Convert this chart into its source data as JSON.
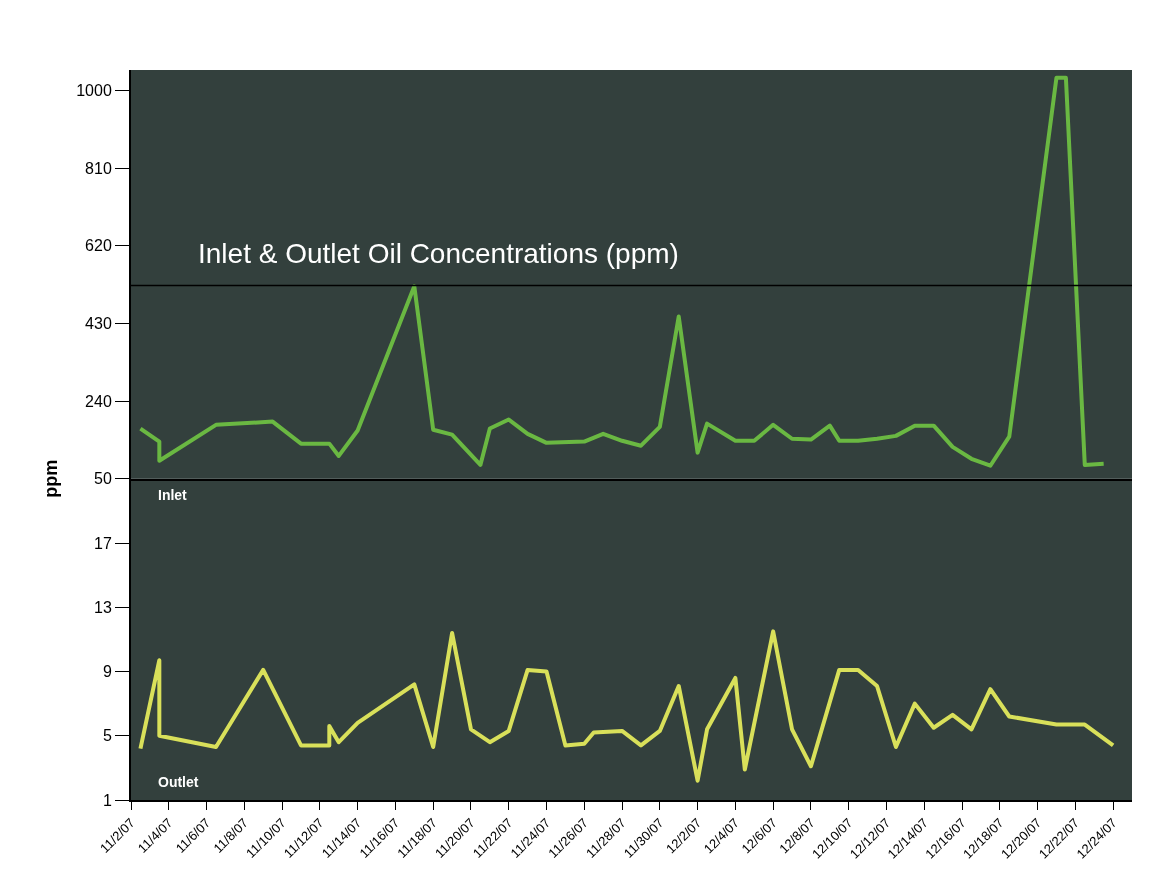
{
  "chart_data": [
    {
      "type": "line",
      "title": "Inlet & Outlet Oil Concentrations (ppm)",
      "ylabel": "ppm",
      "tick_labels": "y",
      "grid": false,
      "marker": "none",
      "line_style": "solid",
      "xlim": [
        "--11-02",
        "--12-25"
      ],
      "ylim": [
        50,
        1050
      ],
      "yticks": [
        50,
        240,
        430,
        620,
        810,
        1000
      ],
      "ref_lines": [
        {
          "axis": "y",
          "value": 523,
          "color": "#000000"
        }
      ],
      "series": [
        {
          "name": "Inlet",
          "color": "#6ab842",
          "x": [
            "--11-02T12:00",
            "--11-03T12:00",
            "--11-03T12:00",
            "--11-06T12:00",
            "--11-09T12:00",
            "--11-11",
            "--11-12T12:00",
            "--11-13",
            "--11-14",
            "--11-17",
            "--11-18",
            "--11-19",
            "--11-20T12:00",
            "--11-21",
            "--11-22",
            "--11-23",
            "--11-24",
            "--11-26",
            "--11-27",
            "--11-28",
            "--11-29",
            "--11-30",
            "--12-01",
            "--12-02",
            "--12-02T12:00",
            "--12-04",
            "--12-05",
            "--12-06",
            "--12-07",
            "--12-08",
            "--12-09",
            "--12-09T12:00",
            "--12-10T12:00",
            "--12-11T12:00",
            "--12-12T12:00",
            "--12-13T12:00",
            "--12-14T12:00",
            "--12-15T12:00",
            "--12-16T12:00",
            "--12-17T12:00",
            "--12-18T12:00",
            "--12-21",
            "--12-21T12:00",
            "--12-22T12:00",
            "--12-23T12:00"
          ],
          "values": [
            173,
            141,
            94,
            182,
            190,
            136,
            136,
            106,
            168,
            521,
            170,
            158,
            84,
            173,
            195,
            160,
            138,
            141,
            160,
            143,
            131,
            177,
            447,
            114,
            185,
            143,
            143,
            182,
            148,
            146,
            180,
            143,
            143,
            148,
            155,
            180,
            180,
            128,
            99,
            82,
            153,
            1031,
            1031,
            84,
            87
          ]
        }
      ]
    },
    {
      "type": "line",
      "xlim": [
        "--11-02",
        "--12-25"
      ],
      "ylim": [
        1,
        21
      ],
      "yticks": [
        1,
        5,
        9,
        13,
        17
      ],
      "grid": false,
      "marker": "none",
      "line_style": "solid",
      "xticks": [
        {
          "value": "--11-02",
          "label": "11/2/07"
        },
        {
          "value": "--11-04",
          "label": "11/4/07"
        },
        {
          "value": "--11-06",
          "label": "11/6/07"
        },
        {
          "value": "--11-08",
          "label": "11/8/07"
        },
        {
          "value": "--11-10",
          "label": "11/10/07"
        },
        {
          "value": "--11-12",
          "label": "11/12/07"
        },
        {
          "value": "--11-14",
          "label": "11/14/07"
        },
        {
          "value": "--11-16",
          "label": "11/16/07"
        },
        {
          "value": "--11-18",
          "label": "11/18/07"
        },
        {
          "value": "--11-20",
          "label": "11/20/07"
        },
        {
          "value": "--11-22",
          "label": "11/22/07"
        },
        {
          "value": "--11-24",
          "label": "11/24/07"
        },
        {
          "value": "--11-26",
          "label": "11/26/07"
        },
        {
          "value": "--11-28",
          "label": "11/28/07"
        },
        {
          "value": "--11-30",
          "label": "11/30/07"
        },
        {
          "value": "--12-02",
          "label": "12/2/07"
        },
        {
          "value": "--12-04",
          "label": "12/4/07"
        },
        {
          "value": "--12-06",
          "label": "12/6/07"
        },
        {
          "value": "--12-08",
          "label": "12/8/07"
        },
        {
          "value": "--12-10",
          "label": "12/10/07"
        },
        {
          "value": "--12-12",
          "label": "12/12/07"
        },
        {
          "value": "--12-14",
          "label": "12/14/07"
        },
        {
          "value": "--12-16",
          "label": "12/16/07"
        },
        {
          "value": "--12-18",
          "label": "12/18/07"
        },
        {
          "value": "--12-20",
          "label": "12/20/07"
        },
        {
          "value": "--12-22",
          "label": "12/22/07"
        },
        {
          "value": "--12-24",
          "label": "12/24/07"
        }
      ],
      "series": [
        {
          "name": "Outlet",
          "color": "#d9e05a",
          "x": [
            "--11-02T12:00",
            "--11-03T12:00",
            "--11-03T12:00",
            "--11-06T12:00",
            "--11-09",
            "--11-11",
            "--11-12T12:00",
            "--11-12T12:00",
            "--11-13",
            "--11-14",
            "--11-17",
            "--11-18",
            "--11-19",
            "--11-20",
            "--11-21",
            "--11-22",
            "--11-23",
            "--11-24",
            "--11-25",
            "--11-26",
            "--11-26T12:00",
            "--11-28",
            "--11-29",
            "--11-30",
            "--12-01",
            "--12-02",
            "--12-02T12:00",
            "--12-04",
            "--12-04T12:00",
            "--12-06",
            "--12-07",
            "--12-08",
            "--12-09T12:00",
            "--12-10T12:00",
            "--12-11T12:00",
            "--12-12T12:00",
            "--12-13T12:00",
            "--12-14T12:00",
            "--12-15T12:00",
            "--12-16T12:00",
            "--12-17T12:00",
            "--12-18T12:00",
            "--12-21",
            "--12-22T12:00",
            "--12-24"
          ],
          "values": [
            4.2,
            9.7,
            5.0,
            4.3,
            9.1,
            4.4,
            4.4,
            5.6,
            4.6,
            5.8,
            8.2,
            4.3,
            11.4,
            5.4,
            4.6,
            5.3,
            9.1,
            9.0,
            4.4,
            4.5,
            5.2,
            5.3,
            4.4,
            5.3,
            8.1,
            2.2,
            5.4,
            8.6,
            2.9,
            11.5,
            5.4,
            3.1,
            9.1,
            9.1,
            8.1,
            4.3,
            7.0,
            5.5,
            6.3,
            5.4,
            7.9,
            6.2,
            5.7,
            5.7,
            4.4
          ]
        }
      ]
    }
  ]
}
